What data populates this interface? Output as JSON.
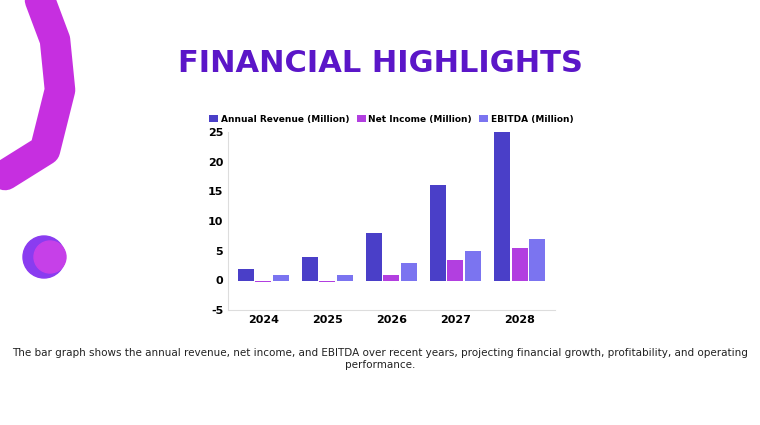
{
  "chart_data": {
    "type": "bar",
    "title": "FINANCIAL HIGHLIGHTS",
    "categories": [
      "2024",
      "2025",
      "2026",
      "2027",
      "2028"
    ],
    "series": [
      {
        "name": "Annual Revenue (Million)",
        "color": "#4a3fc8",
        "values": [
          2,
          4,
          8,
          16,
          25
        ]
      },
      {
        "name": "Net Income (Million)",
        "color": "#b23fe0",
        "values": [
          -0.3,
          -0.2,
          1,
          3.5,
          5.5
        ]
      },
      {
        "name": "EBITDA (Million)",
        "color": "#7b74f0",
        "values": [
          1,
          1,
          3,
          5,
          7
        ]
      }
    ],
    "ylim": [
      -5,
      25
    ],
    "yticks": [
      -5,
      0,
      5,
      10,
      15,
      20,
      25
    ],
    "grid": false,
    "legend": "top",
    "annotations": [
      "The bar graph shows the annual revenue, net income, and EBITDA over recent years, projecting financial growth, profitability, and operating performance."
    ]
  }
}
